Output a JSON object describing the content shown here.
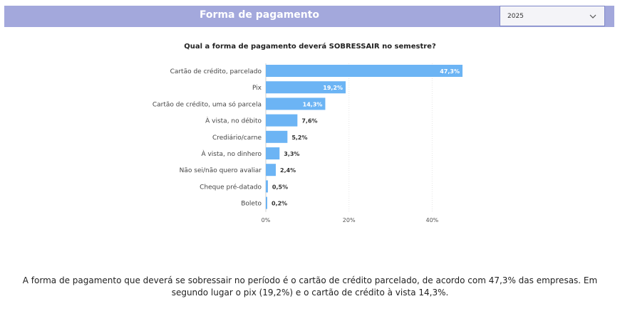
{
  "header": {
    "title": "Forma de pagamento",
    "year_select": {
      "value": "2025"
    }
  },
  "chart_data": {
    "type": "bar",
    "orientation": "horizontal",
    "title": "Qual a forma de pagamento deverá SOBRESSAIR no semestre?",
    "categories": [
      "Cartão de crédito, parcelado",
      "Pix",
      "Cartão de crédito, uma só parcela",
      "À vista, no débito",
      "Crediário/carne",
      "À vista, no dinhero",
      "Não sei/não quero avaliar",
      "Cheque pré-datado",
      "Boleto"
    ],
    "values": [
      47.3,
      19.2,
      14.3,
      7.6,
      5.2,
      3.3,
      2.4,
      0.5,
      0.2
    ],
    "data_labels": [
      "47,3%",
      "19,2%",
      "14,3%",
      "7,6%",
      "5,2%",
      "3,3%",
      "2,4%",
      "0,5%",
      "0,2%"
    ],
    "xlim": [
      0,
      47.3
    ],
    "ticks": [
      0,
      20,
      40
    ],
    "tick_labels": [
      "0%",
      "20%",
      "40%"
    ],
    "grid": true,
    "bar_color": "#6cb4f4",
    "xlabel": "",
    "ylabel": ""
  },
  "caption": "A forma de pagamento que deverá se sobressair no período é o cartão de crédito parcelado, de acordo com 47,3% das empresas. Em segundo lugar o pix (19,2%) e o cartão de crédito à vista 14,3%."
}
